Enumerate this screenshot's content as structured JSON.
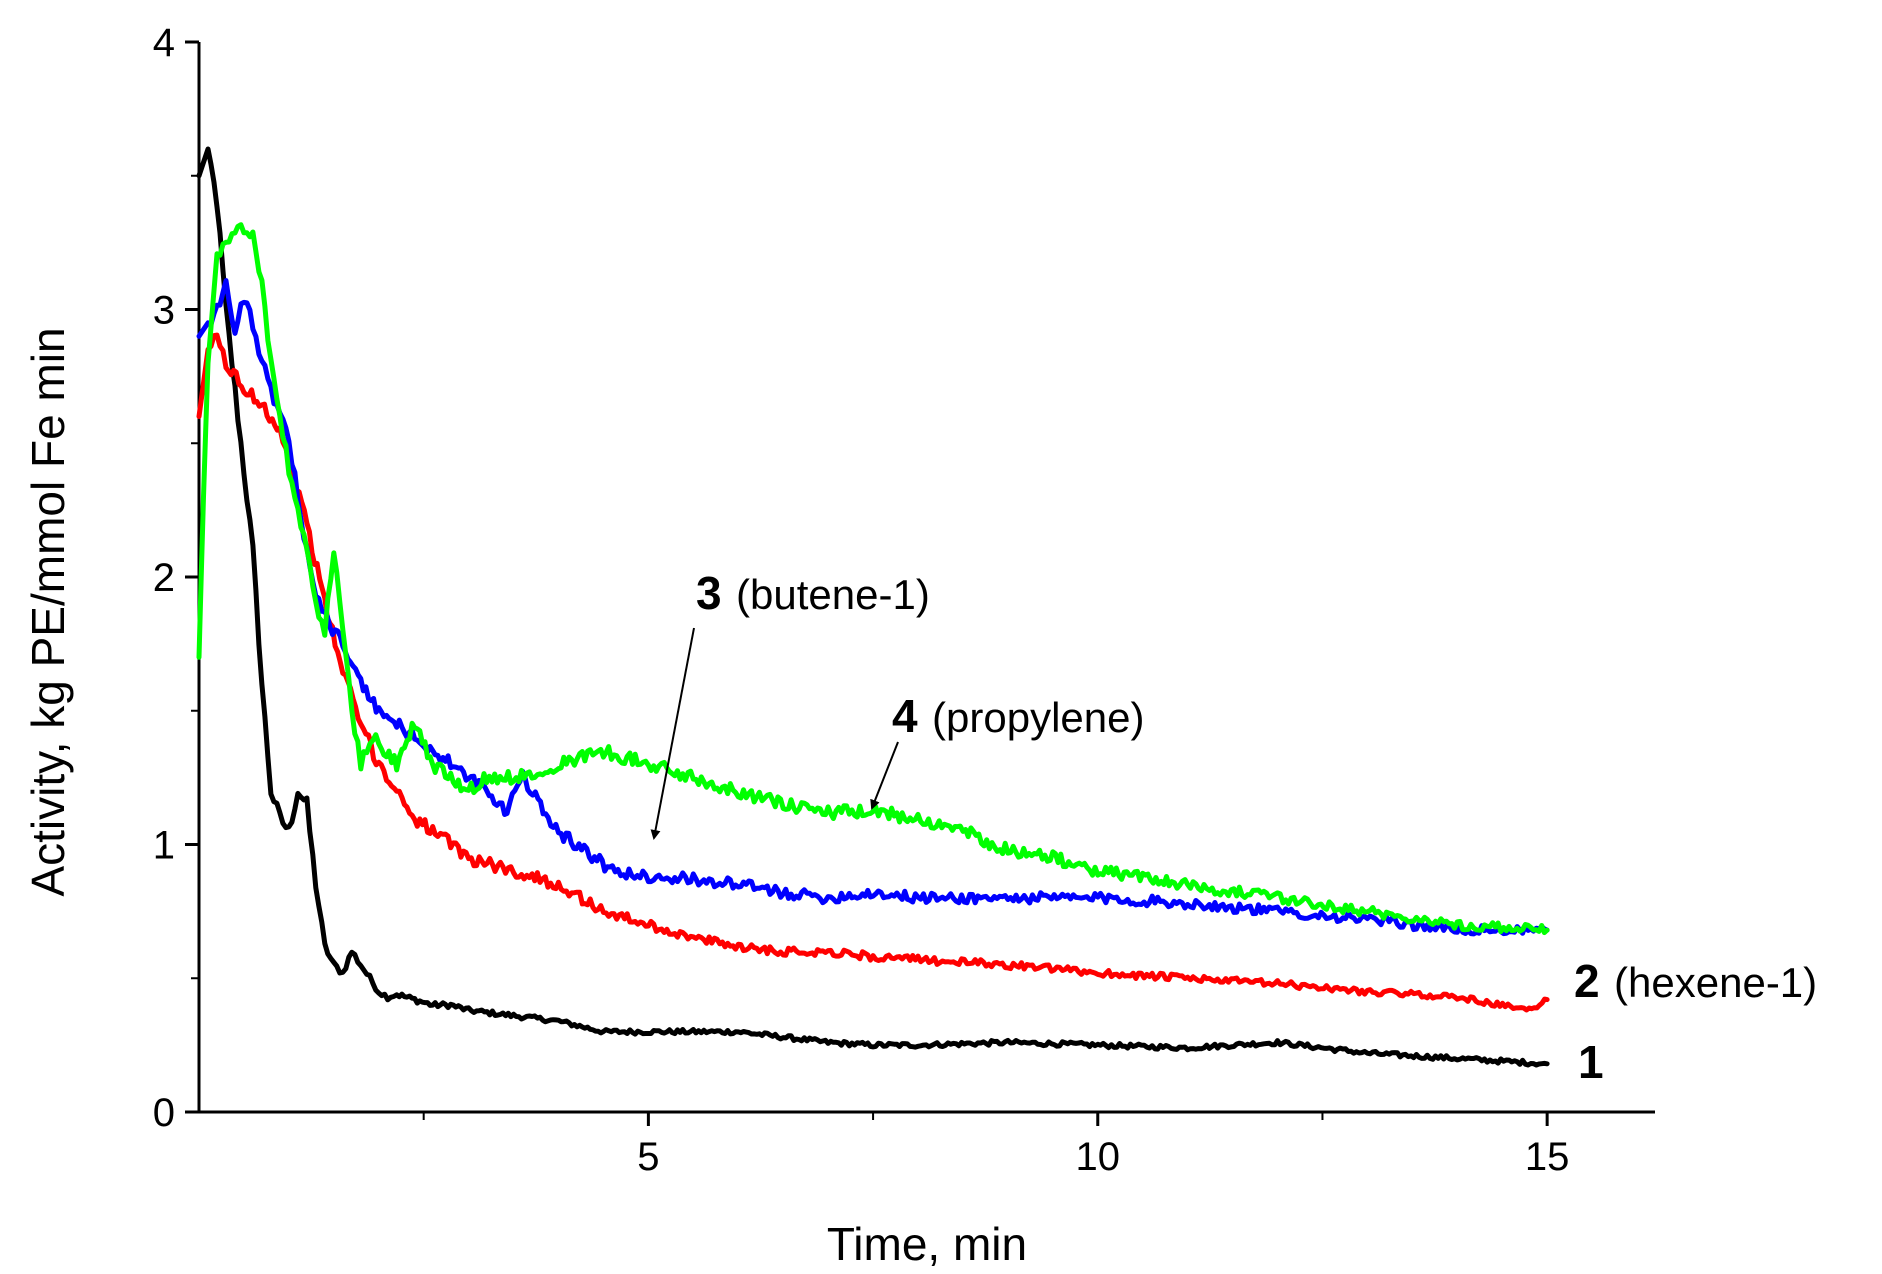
{
  "chart_data": {
    "type": "line",
    "title": "",
    "xlabel": "Time, min",
    "ylabel": "Activity, kg PE/mmol Fe min",
    "xlim": [
      0,
      16.2
    ],
    "ylim": [
      0,
      4
    ],
    "x_ticks": [
      5,
      10,
      15
    ],
    "x_tick_labels": [
      "5",
      "10",
      "15"
    ],
    "x_minor_ticks": [
      2.5,
      7.5,
      12.5
    ],
    "y_ticks": [
      0,
      1,
      2,
      3,
      4
    ],
    "y_tick_labels": [
      "0",
      "1",
      "2",
      "3",
      "4"
    ],
    "y_minor_ticks": [
      0.5,
      1.5,
      2.5,
      3.5
    ],
    "grid": false,
    "legend": "none",
    "series": [
      {
        "name": "1",
        "color": "#000000",
        "x": [
          0,
          0.1,
          0.2,
          0.3,
          0.4,
          0.5,
          0.6,
          0.7,
          0.8,
          0.9,
          1.0,
          1.1,
          1.2,
          1.3,
          1.4,
          1.5,
          1.6,
          1.7,
          1.8,
          1.9,
          2.0,
          2.1,
          2.2,
          2.4,
          2.6,
          2.8,
          3.0,
          3.5,
          4.0,
          4.5,
          5.0,
          5.5,
          6.0,
          6.5,
          7.0,
          7.5,
          8.0,
          9.0,
          10.0,
          11.0,
          12.0,
          13.0,
          14.0,
          15.0
        ],
        "y": [
          3.5,
          3.6,
          3.4,
          3.0,
          2.7,
          2.4,
          2.1,
          1.6,
          1.2,
          1.1,
          1.05,
          1.2,
          1.15,
          0.85,
          0.62,
          0.55,
          0.52,
          0.6,
          0.55,
          0.5,
          0.45,
          0.43,
          0.44,
          0.42,
          0.4,
          0.4,
          0.38,
          0.36,
          0.34,
          0.3,
          0.3,
          0.3,
          0.3,
          0.28,
          0.26,
          0.25,
          0.25,
          0.26,
          0.25,
          0.24,
          0.26,
          0.22,
          0.2,
          0.18
        ]
      },
      {
        "name": "2 (hexene-1)",
        "color": "#ff0000",
        "x": [
          0,
          0.1,
          0.2,
          0.3,
          0.5,
          0.7,
          0.9,
          1.0,
          1.2,
          1.4,
          1.6,
          1.8,
          2.0,
          2.2,
          2.4,
          2.6,
          2.8,
          3.0,
          3.5,
          4.0,
          4.5,
          5.0,
          5.5,
          6.0,
          6.5,
          7.0,
          7.5,
          8.0,
          9.0,
          10.0,
          11.0,
          12.0,
          13.0,
          14.0,
          14.8,
          15.0
        ],
        "y": [
          2.6,
          2.85,
          2.9,
          2.8,
          2.7,
          2.65,
          2.55,
          2.45,
          2.2,
          1.9,
          1.65,
          1.45,
          1.3,
          1.2,
          1.1,
          1.05,
          1.0,
          0.95,
          0.9,
          0.85,
          0.75,
          0.7,
          0.65,
          0.62,
          0.6,
          0.6,
          0.58,
          0.57,
          0.55,
          0.52,
          0.5,
          0.48,
          0.45,
          0.43,
          0.38,
          0.42
        ]
      },
      {
        "name": "3 (butene-1)",
        "color": "#0000ff",
        "x": [
          0,
          0.1,
          0.2,
          0.3,
          0.4,
          0.5,
          0.6,
          0.7,
          0.8,
          0.9,
          1.0,
          1.1,
          1.2,
          1.3,
          1.4,
          1.6,
          1.8,
          2.0,
          2.2,
          2.4,
          2.6,
          2.8,
          3.0,
          3.2,
          3.4,
          3.6,
          3.8,
          4.0,
          4.2,
          4.4,
          4.6,
          5.0,
          5.5,
          6.0,
          6.5,
          7.0,
          7.5,
          8.0,
          9.0,
          10.0,
          11.0,
          12.0,
          13.0,
          14.0,
          15.0
        ],
        "y": [
          2.9,
          2.95,
          3.0,
          3.1,
          2.9,
          3.05,
          2.95,
          2.8,
          2.7,
          2.6,
          2.5,
          2.3,
          2.1,
          1.95,
          1.85,
          1.75,
          1.6,
          1.5,
          1.45,
          1.4,
          1.35,
          1.3,
          1.25,
          1.2,
          1.12,
          1.25,
          1.15,
          1.05,
          1.0,
          0.95,
          0.9,
          0.88,
          0.87,
          0.85,
          0.82,
          0.8,
          0.82,
          0.8,
          0.8,
          0.8,
          0.78,
          0.75,
          0.72,
          0.68,
          0.68
        ]
      },
      {
        "name": "4 (propylene)",
        "color": "#00ff00",
        "x": [
          0,
          0.05,
          0.1,
          0.2,
          0.3,
          0.4,
          0.5,
          0.6,
          0.7,
          0.8,
          0.9,
          1.0,
          1.1,
          1.2,
          1.3,
          1.4,
          1.5,
          1.6,
          1.7,
          1.8,
          1.9,
          2.0,
          2.2,
          2.4,
          2.6,
          2.8,
          3.0,
          3.2,
          3.5,
          4.0,
          4.5,
          5.0,
          5.5,
          6.0,
          6.5,
          7.0,
          7.5,
          8.0,
          8.5,
          9.0,
          9.5,
          10.0,
          10.5,
          11.0,
          12.0,
          13.0,
          14.0,
          15.0
        ],
        "y": [
          1.7,
          2.3,
          2.8,
          3.2,
          3.25,
          3.3,
          3.3,
          3.28,
          3.1,
          2.8,
          2.6,
          2.4,
          2.25,
          2.1,
          1.9,
          1.8,
          2.1,
          1.8,
          1.5,
          1.3,
          1.4,
          1.38,
          1.3,
          1.45,
          1.3,
          1.25,
          1.2,
          1.25,
          1.25,
          1.3,
          1.35,
          1.3,
          1.25,
          1.2,
          1.15,
          1.12,
          1.12,
          1.1,
          1.05,
          0.98,
          0.95,
          0.9,
          0.88,
          0.85,
          0.8,
          0.75,
          0.7,
          0.68
        ]
      }
    ],
    "annotations": [
      {
        "number": "1",
        "text": ""
      },
      {
        "number": "2",
        "text": "(hexene-1)"
      },
      {
        "number": "3",
        "text": "(butene-1)"
      },
      {
        "number": "4",
        "text": "(propylene)"
      }
    ]
  }
}
